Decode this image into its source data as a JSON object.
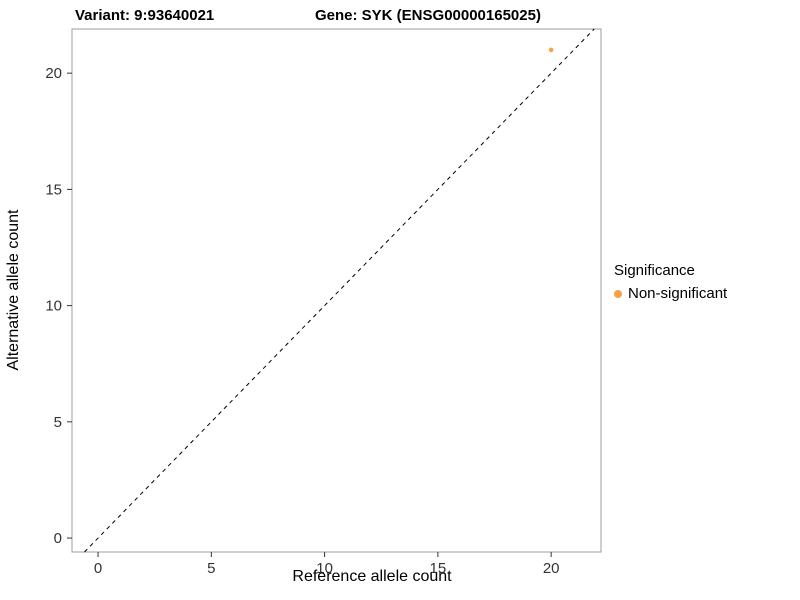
{
  "titles": {
    "variant": "Variant: 9:93640021",
    "gene": "Gene: SYK (ENSG00000165025)"
  },
  "chart_data": {
    "type": "scatter",
    "title_left": "Variant: 9:93640021",
    "title_right": "Gene: SYK (ENSG00000165025)",
    "xlabel": "Reference allele count",
    "ylabel": "Alternative allele count",
    "xlim": [
      -1.15,
      22.2
    ],
    "ylim": [
      -0.6,
      21.9
    ],
    "xticks": [
      0,
      5,
      10,
      15,
      20
    ],
    "yticks": [
      0,
      5,
      10,
      15,
      20
    ],
    "grid": false,
    "panel_border_color": "#9e9e9e",
    "tick_color": "#333333",
    "tick_label_color": "#333333",
    "identity_line": {
      "style": "dashed",
      "color": "#000000",
      "x1": -0.6,
      "y1": -0.6,
      "x2": 21.9,
      "y2": 21.9
    },
    "legend": {
      "position": "right",
      "title": "Significance",
      "entries": [
        {
          "label": "Non-significant",
          "color": "#F9A242"
        }
      ]
    },
    "series": [
      {
        "name": "Non-significant",
        "color": "#F9A242",
        "points": [
          {
            "x": 20,
            "y": 21
          }
        ]
      }
    ]
  }
}
